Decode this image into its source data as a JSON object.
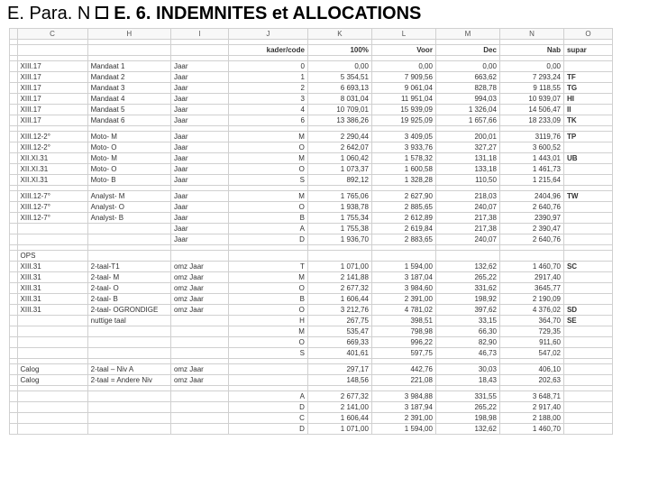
{
  "header": {
    "left": "E. Para. N",
    "right": "E. 6. INDEMNITES et ALLOCATIONS"
  },
  "col_labels": [
    "",
    "C",
    "H",
    "I",
    "J",
    "K",
    "L",
    "M",
    "N",
    "O"
  ],
  "sub_header": [
    "",
    "",
    "",
    "",
    "kader/code",
    "100%",
    "Voor",
    "Dec",
    "Nab",
    "supar"
  ],
  "rows": [
    [
      "",
      "XIII.17",
      "Mandaat 1",
      "Jaar",
      "0",
      "0,00",
      "0,00",
      "0,00",
      "0,00",
      ""
    ],
    [
      "",
      "XIII.17",
      "Mandaat 2",
      "Jaar",
      "1",
      "5 354,51",
      "7 909,56",
      "663,62",
      "7 293,24",
      "TF"
    ],
    [
      "",
      "XIII.17",
      "Mandaat 3",
      "Jaar",
      "2",
      "6 693,13",
      "9 061,04",
      "828,78",
      "9 118,55",
      "TG"
    ],
    [
      "",
      "XIII.17",
      "Mandaat 4",
      "Jaar",
      "3",
      "8 031,04",
      "11 951,04",
      "994,03",
      "10 939,07",
      "HI"
    ],
    [
      "",
      "XIII.17",
      "Mandaat 5",
      "Jaar",
      "4",
      "10 709,01",
      "15 939,09",
      "1 326,04",
      "14 506,47",
      "II"
    ],
    [
      "",
      "XIII.17",
      "Mandaat 6",
      "Jaar",
      "6",
      "13 386,26",
      "19 925,09",
      "1 657,66",
      "18 233,09",
      "TK"
    ]
  ],
  "rows2": [
    [
      "",
      "XIII.12-2°",
      "Moto- M",
      "Jaar",
      "M",
      "2 290,44",
      "3 409,05",
      "200,01",
      "3119,76",
      "TP"
    ],
    [
      "",
      "XIII.12-2°",
      "Moto- O",
      "Jaar",
      "O",
      "2 642,07",
      "3 933,76",
      "327,27",
      "3 600,52",
      ""
    ],
    [
      "",
      "XII.XI.31",
      "Moto- M",
      "Jaar",
      "M",
      "1 060,42",
      "1 578,32",
      "131,18",
      "1 443,01",
      "UB"
    ],
    [
      "",
      "XII.XI.31",
      "Moto- O",
      "Jaar",
      "O",
      "1 073,37",
      "1 600,58",
      "133,18",
      "1 461,73",
      ""
    ],
    [
      "",
      "XII.XI.31",
      "Moto- B",
      "Jaar",
      "S",
      "892,12",
      "1 328,28",
      "110,50",
      "1 215,64",
      ""
    ]
  ],
  "rows3": [
    [
      "",
      "XIII.12-7°",
      "Analyst- M",
      "Jaar",
      "M",
      "1 765,06",
      "2 627,90",
      "218,03",
      "2404,96",
      "TW"
    ],
    [
      "",
      "XIII.12-7°",
      "Analyst- O",
      "Jaar",
      "O",
      "1 938,78",
      "2 885,65",
      "240,07",
      "2 640,76",
      ""
    ],
    [
      "",
      "XIII.12-7°",
      "Analyst- B",
      "Jaar",
      "B",
      "1 755,34",
      "2 612,89",
      "217,38",
      "2390,97",
      ""
    ],
    [
      "",
      "",
      "",
      "Jaar",
      "A",
      "1 755,38",
      "2 619,84",
      "217,38",
      "2 390,47",
      ""
    ],
    [
      "",
      "",
      "",
      "Jaar",
      "D",
      "1 936,70",
      "2 883,65",
      "240,07",
      "2 640,76",
      ""
    ]
  ],
  "rows_ops": [
    [
      "",
      "OPS",
      "",
      "",
      "",
      "",
      "",
      "",
      "",
      ""
    ],
    [
      "",
      "XIII.31",
      "2-taal-T1",
      "omz Jaar",
      "T",
      "1 071,00",
      "1 594,00",
      "132,62",
      "1 460,70",
      "SC"
    ],
    [
      "",
      "XIII.31",
      "2-taal- M",
      "omz Jaar",
      "M",
      "2 141,88",
      "3 187,04",
      "265,22",
      "2917,40",
      ""
    ],
    [
      "",
      "XIII.31",
      "2-taal- O",
      "omz Jaar",
      "O",
      "2 677,32",
      "3 984,60",
      "331,62",
      "3645,77",
      ""
    ],
    [
      "",
      "XIII.31",
      "2-taal- B",
      "omz Jaar",
      "B",
      "1 606,44",
      "2 391,00",
      "198,92",
      "2 190,09",
      ""
    ],
    [
      "",
      "XIII.31",
      "2-taal- OGRONDIGE",
      "omz Jaar",
      "O",
      "3 212,76",
      "4 781,02",
      "397,62",
      "4 376,02",
      "SD"
    ],
    [
      "",
      "",
      "nuttige taal",
      "",
      "H",
      "267,75",
      "398,51",
      "33,15",
      "364,70",
      "SE"
    ],
    [
      "",
      "",
      "",
      "",
      "M",
      "535,47",
      "798,98",
      "66,30",
      "729,35",
      ""
    ],
    [
      "",
      "",
      "",
      "",
      "O",
      "669,33",
      "996,22",
      "82,90",
      "911,60",
      ""
    ],
    [
      "",
      "",
      "",
      "",
      "S",
      "401,61",
      "597,75",
      "46,73",
      "547,02",
      ""
    ]
  ],
  "rows_calog": [
    [
      "",
      "Calog",
      "2-taal – Niv A",
      "omz Jaar",
      "",
      "297,17",
      "442,76",
      "30,03",
      "406,10",
      ""
    ],
    [
      "",
      "Calog",
      "2-taal = Andere Niv",
      "omz Jaar",
      "",
      "148,56",
      "221,08",
      "18,43",
      "202,63",
      ""
    ]
  ],
  "rows_end": [
    [
      "",
      "",
      "",
      "",
      "A",
      "2 677,32",
      "3 984,88",
      "331,55",
      "3 648,71",
      ""
    ],
    [
      "",
      "",
      "",
      "",
      "D",
      "2 141,00",
      "3 187,94",
      "265,22",
      "2 917,40",
      ""
    ],
    [
      "",
      "",
      "",
      "",
      "C",
      "1 606,44",
      "2 391,00",
      "198,98",
      "2 188,00",
      ""
    ],
    [
      "",
      "",
      "",
      "",
      "D",
      "1 071,00",
      "1 594,00",
      "132,62",
      "1 460,70",
      ""
    ]
  ],
  "styling": {
    "bg": "#ffffff",
    "grid": "#d0d0d0",
    "header_fontsize": 20,
    "table_fontsize": 8,
    "bold_codes_column": "O"
  }
}
